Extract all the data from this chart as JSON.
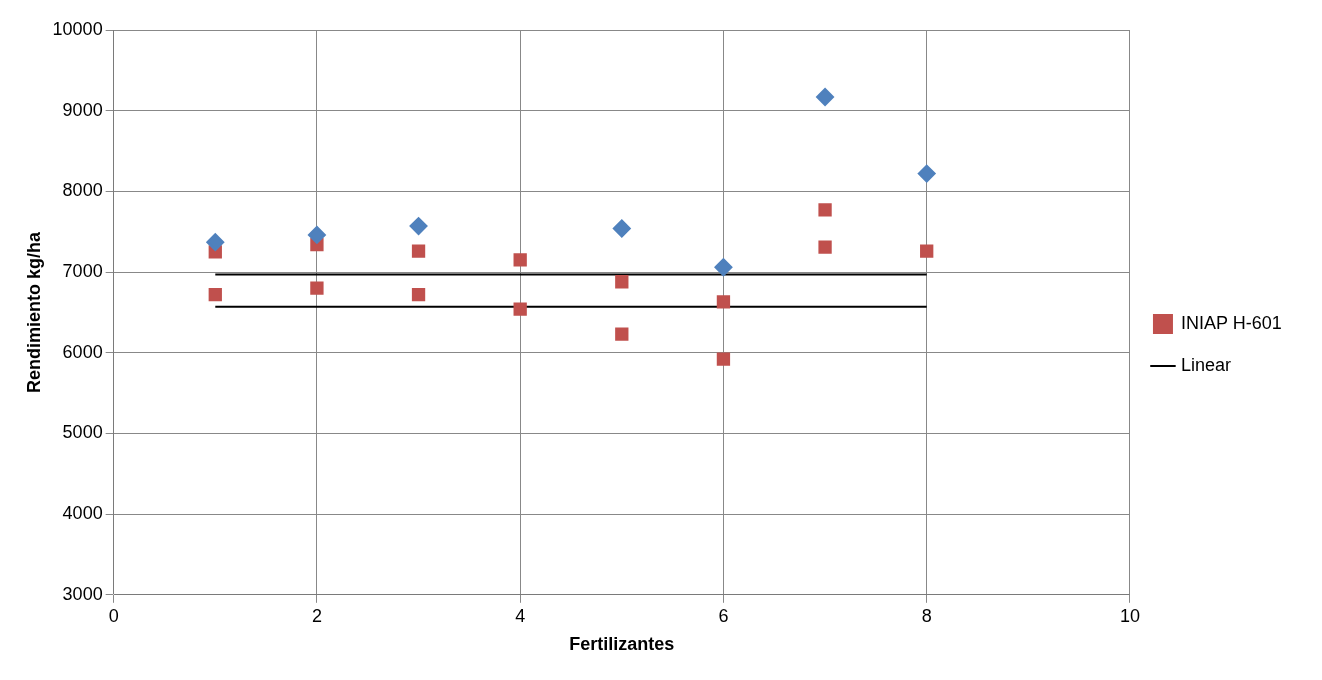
{
  "chart_data": {
    "type": "scatter",
    "xlabel": "Fertilizantes",
    "ylabel": "Rendimiento kg/ha",
    "x": [
      1,
      2,
      3,
      4,
      5,
      6,
      7,
      8
    ],
    "series": [
      {
        "color": "#4f81bd",
        "marker": "diamond",
        "values": [
          7370,
          7460,
          7570,
          null,
          7540,
          7060,
          9170,
          8220
        ]
      },
      {
        "color": "#c0504d",
        "marker": "square",
        "values": [
          7250,
          7340,
          7260,
          7150,
          6880,
          6630,
          7770,
          7260
        ]
      },
      {
        "name": "INIAP H-601",
        "color": "#c0504d",
        "marker": "square",
        "values": [
          6720,
          6800,
          6720,
          6540,
          6230,
          5920,
          7310,
          null
        ]
      },
      {
        "name": "Linear",
        "type": "line",
        "color": "#000000",
        "marker": "none",
        "values": [
          6970,
          6970,
          6970,
          6970,
          6970,
          6970,
          6970,
          6970
        ]
      },
      {
        "type": "line",
        "color": "#000000",
        "marker": "none",
        "values": [
          6570,
          6570,
          6570,
          6570,
          6570,
          6570,
          6570,
          6570
        ]
      }
    ],
    "xlim": [
      0,
      10
    ],
    "xticks": [
      0,
      2,
      4,
      6,
      8,
      10
    ],
    "ylim": [
      3000,
      10000
    ],
    "yticks": [
      3000,
      4000,
      5000,
      6000,
      7000,
      8000,
      9000,
      10000
    ],
    "grid": true,
    "legend": "right"
  }
}
